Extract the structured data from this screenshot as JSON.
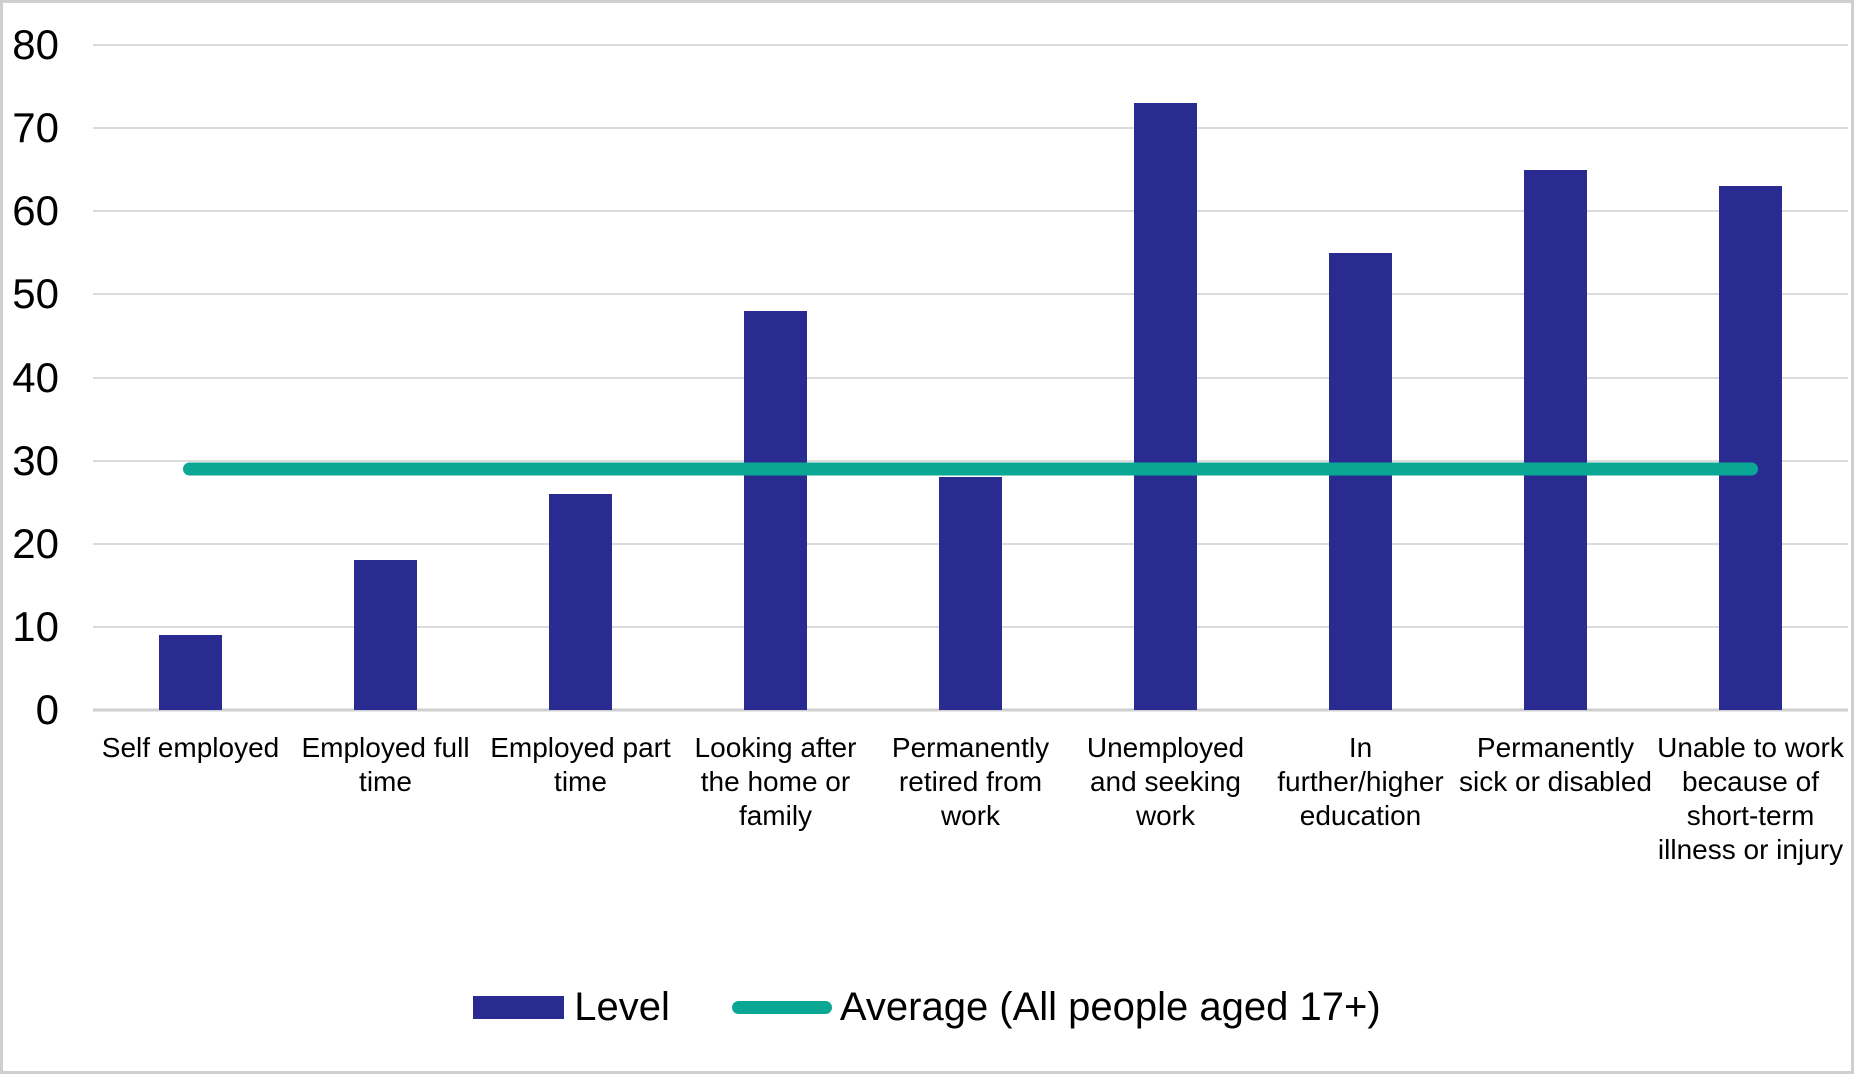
{
  "chart_data": {
    "type": "bar",
    "title": "",
    "xlabel": "",
    "ylabel": "",
    "categories": [
      "Self employed",
      "Employed full time",
      "Employed part time",
      "Looking after the home or family",
      "Permanently retired from work",
      "Unemployed and seeking work",
      "In further/higher education",
      "Permanently sick or disabled",
      "Unable to work because of short-term illness or injury"
    ],
    "series": [
      {
        "name": "Level",
        "type": "bar",
        "color": "#292b90",
        "values": [
          9,
          18,
          26,
          48,
          28,
          73,
          55,
          65,
          63
        ]
      },
      {
        "name": "Average (All people aged 17+)",
        "type": "line",
        "color": "#0aa795",
        "values": [
          29,
          29,
          29,
          29,
          29,
          29,
          29,
          29,
          29
        ]
      }
    ],
    "ylim": [
      0,
      80
    ],
    "y_ticks": [
      0,
      10,
      20,
      30,
      40,
      50,
      60,
      70,
      80
    ],
    "grid": "horizontal-only",
    "legend_position": "bottom-center"
  },
  "legend": {
    "bar_label": "Level",
    "line_label": "Average (All people aged 17+)"
  },
  "colors": {
    "bar": "#292b90",
    "line": "#0aa795",
    "gridline": "#dbdbdb",
    "axis_line": "#cfcfcf",
    "text": "#000000",
    "frame_border": "#cfcfcf",
    "background": "#ffffff"
  }
}
